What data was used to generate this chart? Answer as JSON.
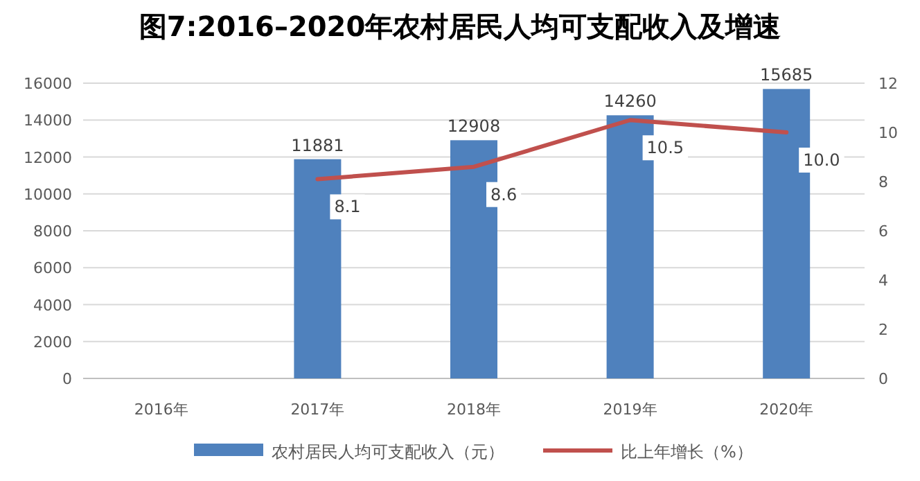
{
  "chart_data": {
    "type": "bar",
    "title": "图7:2016–2020年农村居民人均可支配收入及增速",
    "categories": [
      "2016年",
      "2017年",
      "2018年",
      "2019年",
      "2020年"
    ],
    "series": [
      {
        "name": "农村居民人均可支配收入（元）",
        "color": "#4f81bd",
        "values": [
          null,
          11881,
          12908,
          14260,
          15685
        ],
        "value_labels": [
          null,
          "11881",
          "12908",
          "14260",
          "15685"
        ]
      },
      {
        "name": "比上年增长（%）",
        "type": "line",
        "axis": "y2",
        "color": "#c0504d",
        "values": [
          null,
          8.1,
          8.6,
          10.5,
          10.0
        ],
        "value_labels": [
          null,
          "8.1",
          "8.6",
          "10.5",
          "10.0"
        ]
      }
    ],
    "ylim": [
      0,
      16000
    ],
    "yticks": [
      0,
      2000,
      4000,
      6000,
      8000,
      10000,
      12000,
      14000,
      16000
    ],
    "y2lim": [
      0,
      12
    ],
    "y2ticks": [
      0,
      2,
      4,
      6,
      8,
      10,
      12
    ],
    "grid": "y",
    "legend": "bottom"
  }
}
